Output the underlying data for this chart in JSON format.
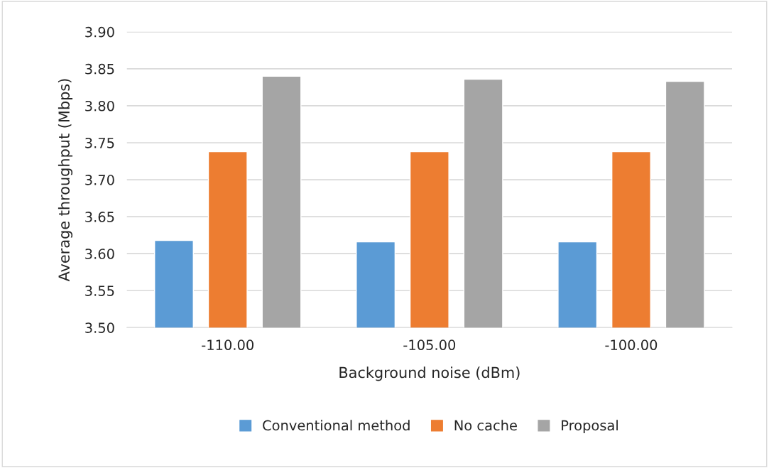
{
  "chart_data": {
    "type": "bar",
    "xlabel": "Background noise (dBm)",
    "ylabel": "Average throughput (Mbps)",
    "categories": [
      "-110.00",
      "-105.00",
      "-100.00"
    ],
    "series": [
      {
        "name": "Conventional method",
        "color": "#5b9bd5",
        "values": [
          3.618,
          3.616,
          3.616
        ]
      },
      {
        "name": "No cache",
        "color": "#ed7d31",
        "values": [
          3.738,
          3.738,
          3.738
        ]
      },
      {
        "name": "Proposal",
        "color": "#a5a5a5",
        "values": [
          3.84,
          3.836,
          3.833
        ]
      }
    ],
    "ylim": [
      3.5,
      3.9
    ],
    "yticks": [
      {
        "value": 3.5,
        "label": "3.50"
      },
      {
        "value": 3.55,
        "label": "3.55"
      },
      {
        "value": 3.6,
        "label": "3.60"
      },
      {
        "value": 3.65,
        "label": "3.65"
      },
      {
        "value": 3.7,
        "label": "3.70"
      },
      {
        "value": 3.75,
        "label": "3.75"
      },
      {
        "value": 3.8,
        "label": "3.80"
      },
      {
        "value": 3.85,
        "label": "3.85"
      },
      {
        "value": 3.9,
        "label": "3.90"
      }
    ],
    "grid": "y",
    "legend": "bottom"
  }
}
